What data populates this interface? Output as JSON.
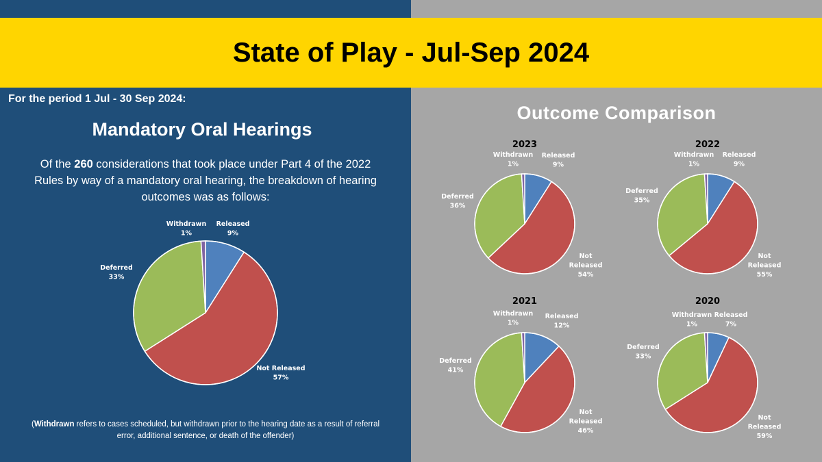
{
  "header": {
    "title": "State of Play - Jul-Sep 2024"
  },
  "left": {
    "period": "For the period 1 Jul - 30 Sep 2024:",
    "heading": "Mandatory Oral Hearings",
    "desc_pre": "Of the ",
    "desc_num": "260",
    "desc_post": " considerations that took place under Part 4 of the 2022 Rules by way of a mandatory oral hearing, the breakdown of hearing outcomes was as follows:",
    "note_bold": "Withdrawn",
    "note_rest": " refers to cases scheduled, but withdrawn prior to the hearing date as a result of referral error, additional sentence, or death of the offender)",
    "note_open": "("
  },
  "right": {
    "heading": "Outcome Comparison"
  },
  "colors": {
    "Released": "#4f81bd",
    "Not Released": "#c0504d",
    "Deferred": "#9bbb59",
    "Withdrawn": "#8064a2"
  },
  "chart_data": [
    {
      "type": "pie",
      "title": "",
      "categories": [
        "Released",
        "Not Released",
        "Deferred",
        "Withdrawn"
      ],
      "values": [
        9,
        57,
        33,
        1
      ],
      "labels": [
        "9%",
        "57%",
        "33%",
        "1%"
      ]
    },
    {
      "type": "pie",
      "title": "2023",
      "categories": [
        "Released",
        "Not Released",
        "Deferred",
        "Withdrawn"
      ],
      "values": [
        9,
        54,
        36,
        1
      ],
      "labels": [
        "9%",
        "54%",
        "36%",
        "1%"
      ]
    },
    {
      "type": "pie",
      "title": "2022",
      "categories": [
        "Released",
        "Not Released",
        "Deferred",
        "Withdrawn"
      ],
      "values": [
        9,
        55,
        35,
        1
      ],
      "labels": [
        "9%",
        "55%",
        "35%",
        "1%"
      ]
    },
    {
      "type": "pie",
      "title": "2021",
      "categories": [
        "Released",
        "Not Released",
        "Deferred",
        "Withdrawn"
      ],
      "values": [
        12,
        46,
        41,
        1
      ],
      "labels": [
        "12%",
        "46%",
        "41%",
        "1%"
      ]
    },
    {
      "type": "pie",
      "title": "2020",
      "categories": [
        "Released",
        "Not Released",
        "Deferred",
        "Withdrawn"
      ],
      "values": [
        7,
        59,
        33,
        1
      ],
      "labels": [
        "7%",
        "59%",
        "33%",
        "1%"
      ]
    }
  ]
}
